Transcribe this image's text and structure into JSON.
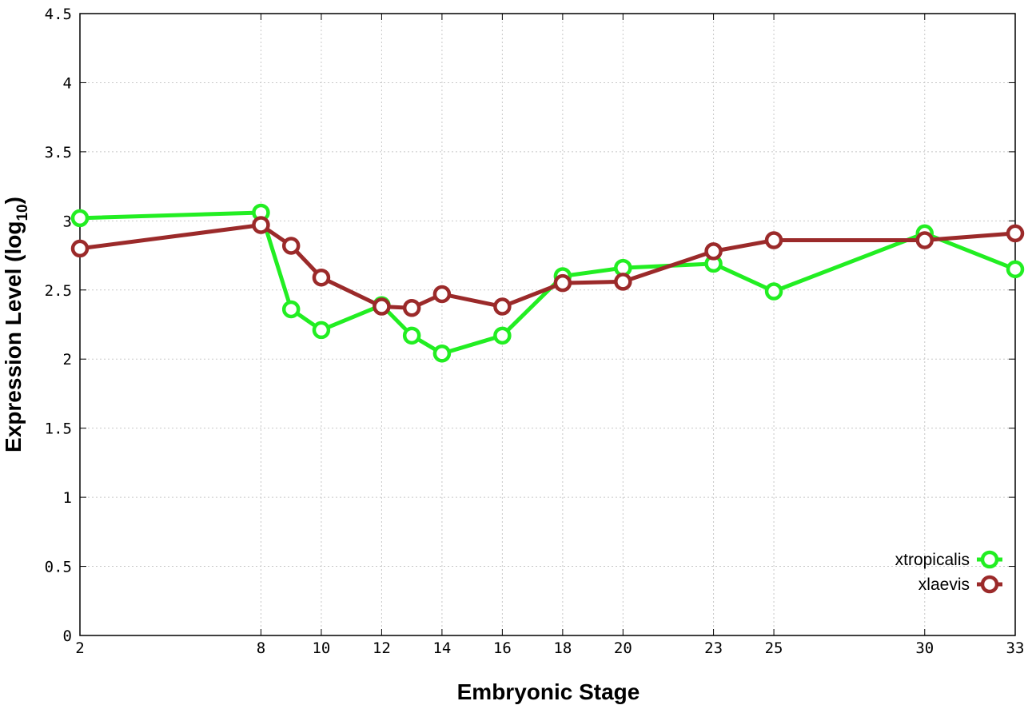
{
  "chart_data": {
    "type": "line",
    "xlabel": "Embryonic Stage",
    "ylabel_main": "Expression Level (log",
    "ylabel_sub": "10",
    "ylabel_close": ")",
    "xlim": [
      2,
      33
    ],
    "ylim": [
      0,
      4.5
    ],
    "x_ticks": [
      2,
      8,
      10,
      12,
      14,
      16,
      18,
      20,
      23,
      25,
      30,
      33
    ],
    "y_ticks": [
      0,
      0.5,
      1,
      1.5,
      2,
      2.5,
      3,
      3.5,
      4,
      4.5
    ],
    "y_tick_labels": [
      "0",
      "0.5",
      "1",
      "1.5",
      "2",
      "2.5",
      "3",
      "3.5",
      "4",
      "4.5"
    ],
    "x_tick_labels": [
      "2",
      "8",
      "10",
      "12",
      "14",
      "16",
      "18",
      "20",
      "23",
      "25",
      "30",
      "33"
    ],
    "grid": true,
    "legend_position": "bottom-right",
    "x": [
      2,
      8,
      9,
      10,
      12,
      13,
      14,
      16,
      18,
      20,
      23,
      25,
      30,
      33
    ],
    "series": [
      {
        "name": "xtropicalis",
        "color": "#22ee22",
        "values": [
          3.02,
          3.06,
          2.36,
          2.21,
          2.39,
          2.17,
          2.04,
          2.17,
          2.6,
          2.66,
          2.69,
          2.49,
          2.91,
          2.65
        ]
      },
      {
        "name": "xlaevis",
        "color": "#9b2a2a",
        "values": [
          2.8,
          2.97,
          2.82,
          2.59,
          2.38,
          2.37,
          2.47,
          2.38,
          2.55,
          2.56,
          2.78,
          2.86,
          2.86,
          2.91
        ]
      }
    ]
  }
}
